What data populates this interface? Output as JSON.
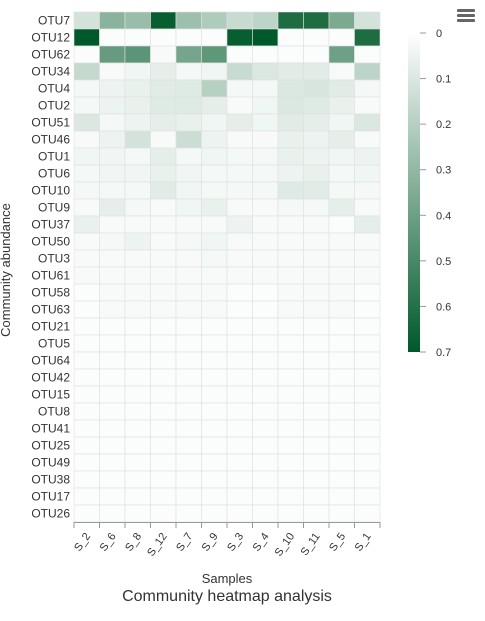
{
  "toolbar": {
    "menu_icon": "hamburger-menu-icon"
  },
  "chart_data": {
    "type": "heatmap",
    "title": "Community heatmap analysis",
    "xlabel": "Samples",
    "ylabel": "Community abundance",
    "x": [
      "S_2",
      "S_6",
      "S_8",
      "S_12",
      "S_7",
      "S_9",
      "S_3",
      "S_4",
      "S_10",
      "S_11",
      "S_5",
      "S_1"
    ],
    "y": [
      "OTU7",
      "OTU12",
      "OTU62",
      "OTU34",
      "OTU4",
      "OTU2",
      "OTU51",
      "OTU46",
      "OTU1",
      "OTU6",
      "OTU10",
      "OTU9",
      "OTU37",
      "OTU50",
      "OTU3",
      "OTU61",
      "OTU58",
      "OTU63",
      "OTU21",
      "OTU5",
      "OTU64",
      "OTU42",
      "OTU15",
      "OTU8",
      "OTU41",
      "OTU25",
      "OTU49",
      "OTU38",
      "OTU17",
      "OTU26"
    ],
    "values": [
      [
        0.12,
        0.32,
        0.28,
        0.68,
        0.27,
        0.22,
        0.15,
        0.18,
        0.62,
        0.62,
        0.36,
        0.12
      ],
      [
        0.7,
        0.01,
        0.01,
        0.01,
        0.01,
        0.01,
        0.68,
        0.7,
        0.01,
        0.01,
        0.01,
        0.62
      ],
      [
        0.01,
        0.42,
        0.45,
        0.02,
        0.38,
        0.44,
        0.01,
        0.01,
        0.01,
        0.01,
        0.4,
        0.01
      ],
      [
        0.16,
        0.02,
        0.04,
        0.07,
        0.03,
        0.04,
        0.15,
        0.1,
        0.08,
        0.08,
        0.02,
        0.18
      ],
      [
        0.03,
        0.05,
        0.06,
        0.08,
        0.09,
        0.2,
        0.03,
        0.03,
        0.1,
        0.11,
        0.08,
        0.03
      ],
      [
        0.03,
        0.05,
        0.06,
        0.09,
        0.09,
        0.07,
        0.02,
        0.04,
        0.1,
        0.09,
        0.06,
        0.02
      ],
      [
        0.1,
        0.03,
        0.05,
        0.07,
        0.06,
        0.04,
        0.07,
        0.04,
        0.08,
        0.07,
        0.04,
        0.1
      ],
      [
        0.02,
        0.05,
        0.12,
        0.02,
        0.14,
        0.05,
        0.02,
        0.02,
        0.06,
        0.05,
        0.07,
        0.02
      ],
      [
        0.04,
        0.04,
        0.03,
        0.07,
        0.03,
        0.04,
        0.03,
        0.03,
        0.06,
        0.05,
        0.04,
        0.05
      ],
      [
        0.03,
        0.04,
        0.04,
        0.06,
        0.04,
        0.03,
        0.03,
        0.03,
        0.05,
        0.06,
        0.03,
        0.04
      ],
      [
        0.03,
        0.03,
        0.03,
        0.08,
        0.04,
        0.03,
        0.03,
        0.03,
        0.09,
        0.08,
        0.03,
        0.03
      ],
      [
        0.02,
        0.07,
        0.03,
        0.02,
        0.04,
        0.06,
        0.02,
        0.02,
        0.03,
        0.03,
        0.07,
        0.02
      ],
      [
        0.06,
        0.02,
        0.02,
        0.02,
        0.02,
        0.02,
        0.05,
        0.02,
        0.02,
        0.02,
        0.01,
        0.07
      ],
      [
        0.02,
        0.03,
        0.05,
        0.02,
        0.03,
        0.04,
        0.02,
        0.02,
        0.02,
        0.02,
        0.02,
        0.02
      ],
      [
        0.02,
        0.02,
        0.02,
        0.02,
        0.02,
        0.03,
        0.02,
        0.02,
        0.02,
        0.02,
        0.02,
        0.02
      ],
      [
        0.02,
        0.02,
        0.02,
        0.02,
        0.02,
        0.02,
        0.02,
        0.02,
        0.02,
        0.02,
        0.02,
        0.02
      ],
      [
        0.01,
        0.02,
        0.02,
        0.02,
        0.02,
        0.02,
        0.01,
        0.01,
        0.02,
        0.02,
        0.02,
        0.01
      ],
      [
        0.01,
        0.02,
        0.02,
        0.02,
        0.02,
        0.02,
        0.01,
        0.01,
        0.02,
        0.02,
        0.02,
        0.01
      ],
      [
        0.01,
        0.01,
        0.01,
        0.01,
        0.01,
        0.01,
        0.01,
        0.01,
        0.01,
        0.01,
        0.01,
        0.01
      ],
      [
        0.01,
        0.01,
        0.01,
        0.01,
        0.01,
        0.01,
        0.01,
        0.01,
        0.01,
        0.01,
        0.01,
        0.01
      ],
      [
        0.01,
        0.01,
        0.01,
        0.01,
        0.01,
        0.01,
        0.01,
        0.01,
        0.01,
        0.01,
        0.01,
        0.01
      ],
      [
        0.01,
        0.01,
        0.01,
        0.01,
        0.01,
        0.01,
        0.01,
        0.01,
        0.01,
        0.01,
        0.01,
        0.01
      ],
      [
        0.01,
        0.01,
        0.01,
        0.01,
        0.01,
        0.01,
        0.01,
        0.01,
        0.01,
        0.01,
        0.01,
        0.01
      ],
      [
        0.01,
        0.01,
        0.01,
        0.01,
        0.01,
        0.01,
        0.01,
        0.01,
        0.01,
        0.01,
        0.01,
        0.01
      ],
      [
        0.01,
        0.01,
        0.01,
        0.01,
        0.01,
        0.01,
        0.01,
        0.01,
        0.01,
        0.01,
        0.01,
        0.01
      ],
      [
        0.01,
        0.01,
        0.01,
        0.01,
        0.01,
        0.01,
        0.01,
        0.01,
        0.01,
        0.01,
        0.01,
        0.01
      ],
      [
        0.01,
        0.01,
        0.01,
        0.01,
        0.01,
        0.01,
        0.01,
        0.01,
        0.01,
        0.01,
        0.01,
        0.01
      ],
      [
        0.01,
        0.01,
        0.01,
        0.01,
        0.01,
        0.01,
        0.01,
        0.01,
        0.01,
        0.01,
        0.01,
        0.01
      ],
      [
        0.01,
        0.01,
        0.01,
        0.01,
        0.01,
        0.01,
        0.01,
        0.01,
        0.01,
        0.01,
        0.01,
        0.01
      ],
      [
        0.01,
        0.01,
        0.01,
        0.01,
        0.01,
        0.01,
        0.01,
        0.01,
        0.01,
        0.01,
        0.01,
        0.01
      ]
    ],
    "color_scale": {
      "min": 0,
      "max": 0.7,
      "min_color": "#ffffff",
      "max_color": "#00592a",
      "ticks": [
        "0",
        "0.1",
        "0.2",
        "0.3",
        "0.4",
        "0.5",
        "0.6",
        "0.7"
      ]
    },
    "grid_color": "#e0e0e0",
    "legend": "right"
  }
}
